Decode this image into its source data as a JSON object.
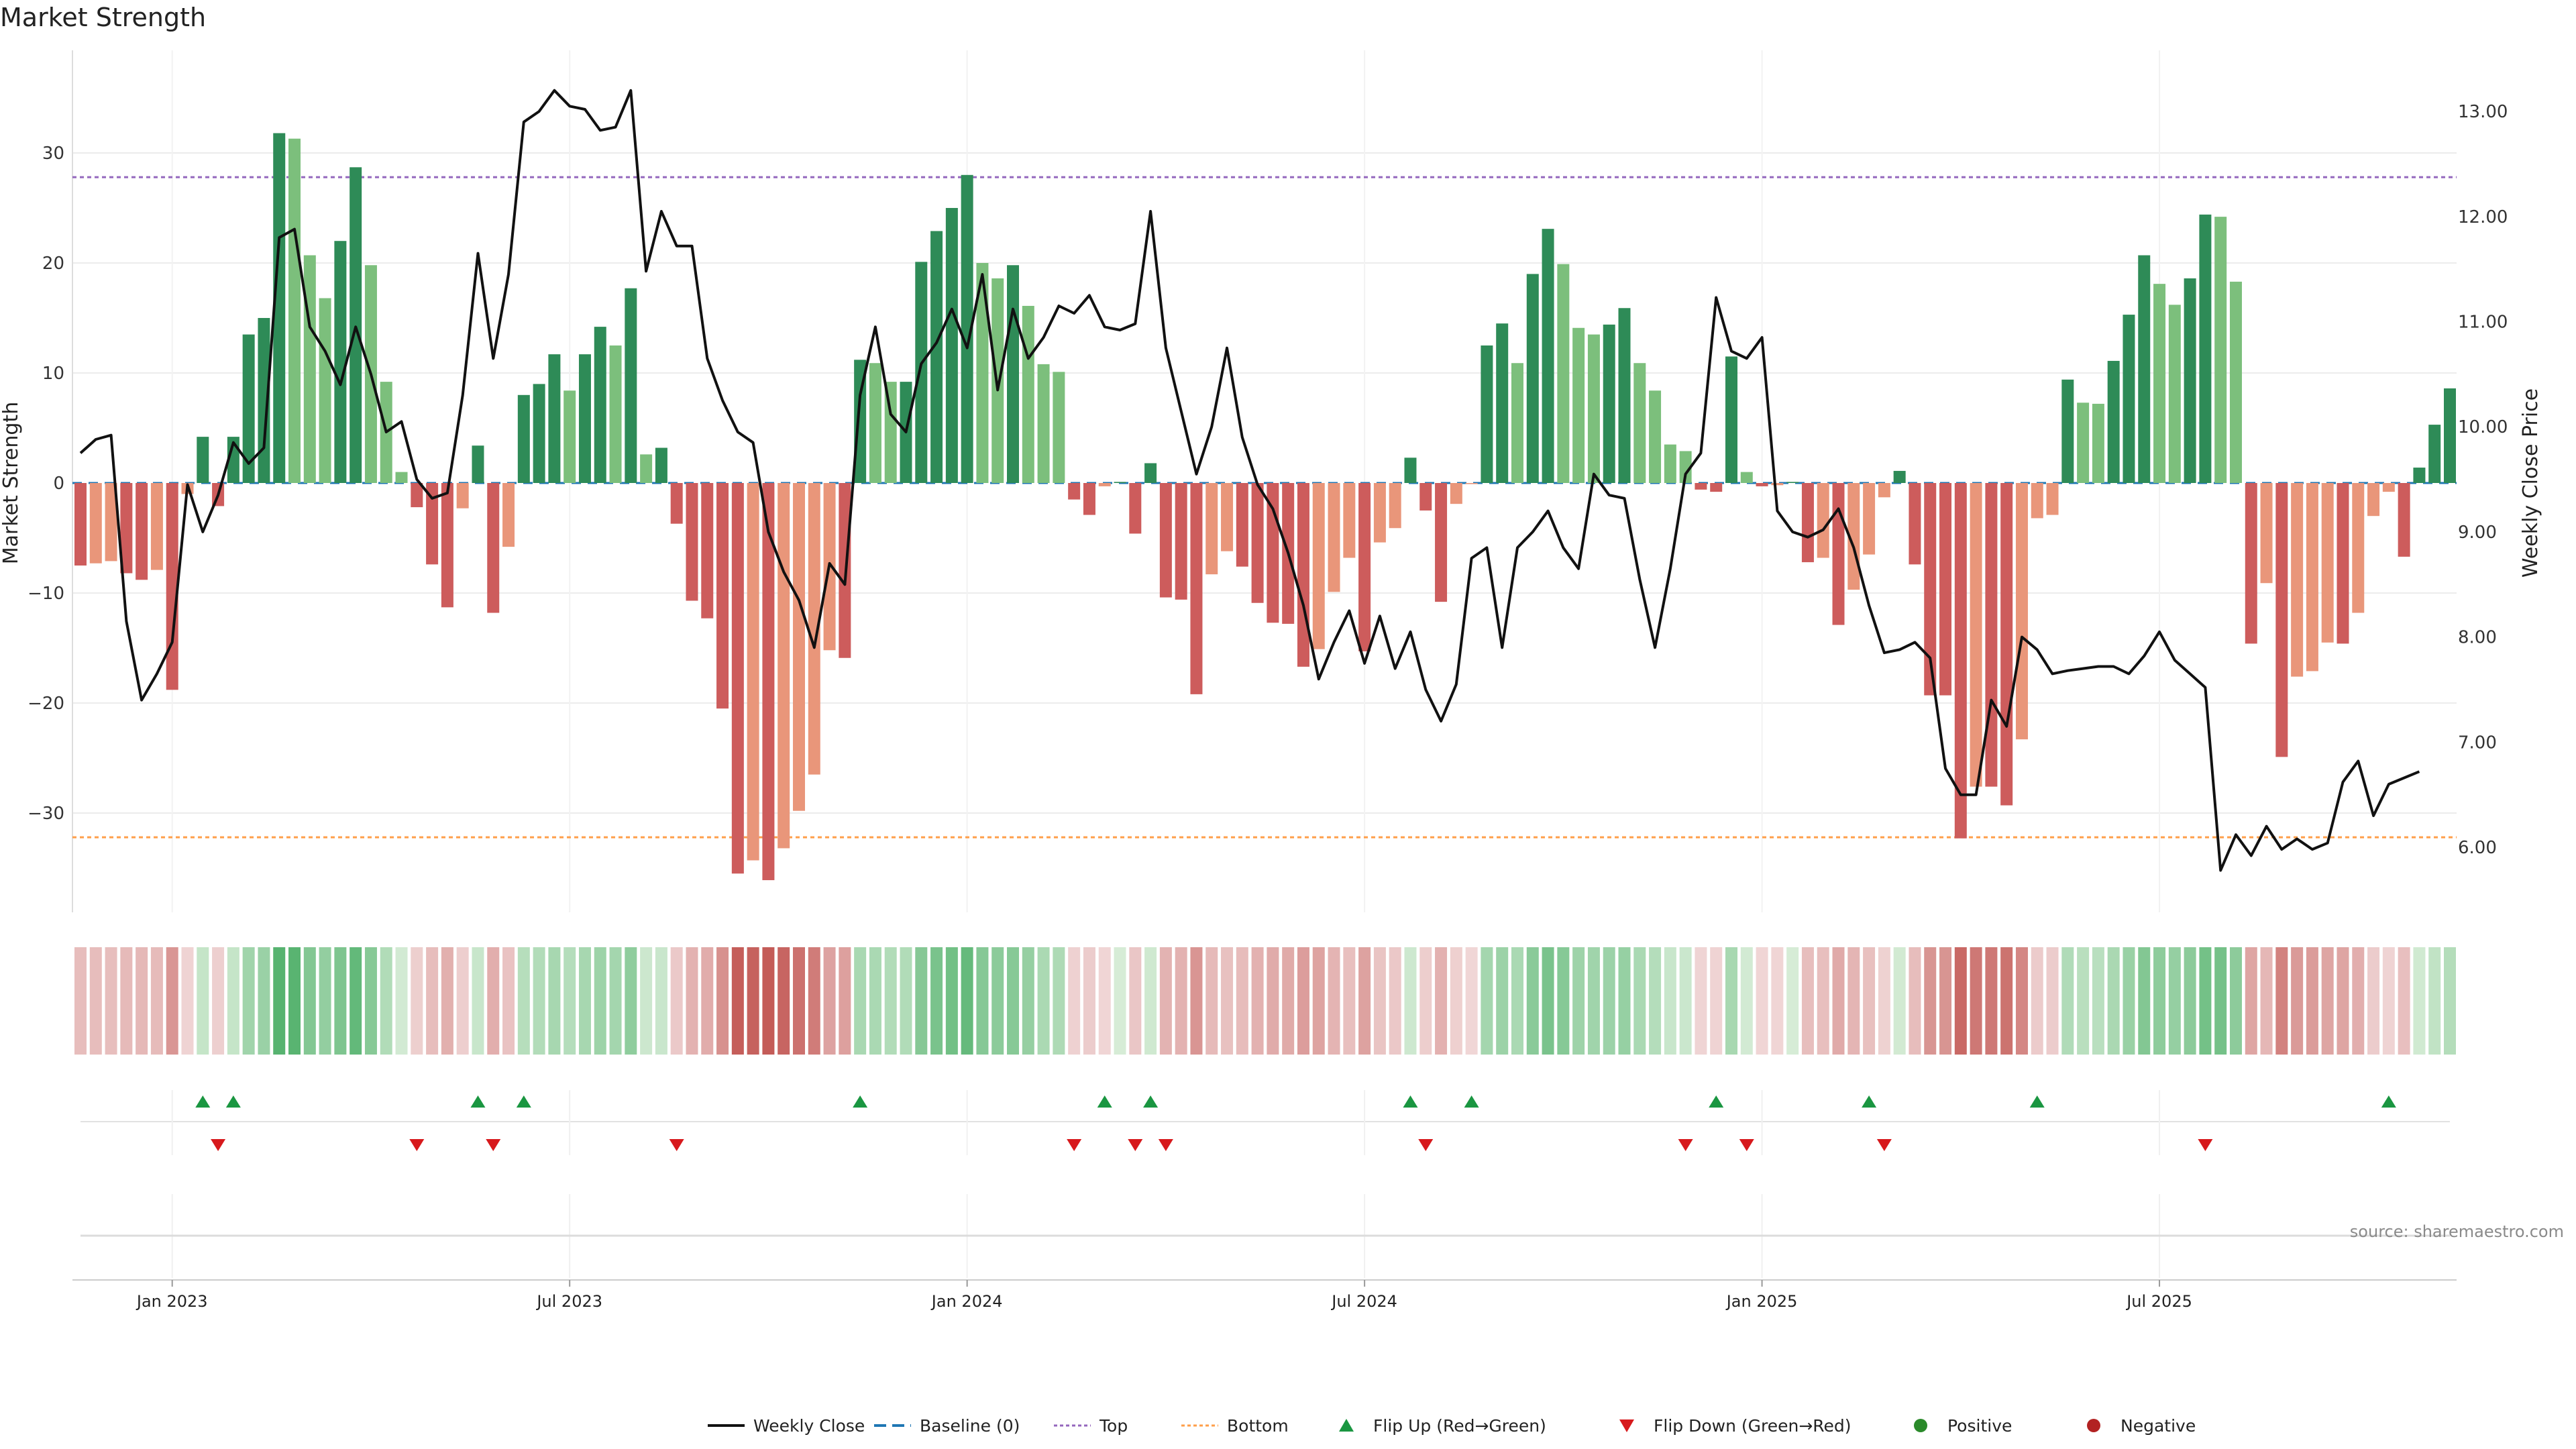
{
  "title": "Market Strength",
  "source": "source: sharemaestro.com",
  "chart_data": {
    "type": "bar",
    "title": "Market Strength",
    "ylabel": "Market Strength",
    "y2label": "Weekly Close Price",
    "ylim": [
      -39,
      39
    ],
    "y2lim": [
      5.2,
      13.4
    ],
    "yticks": [
      -30,
      -20,
      -10,
      0,
      10,
      20,
      30
    ],
    "y2ticks": [
      6.0,
      7.0,
      8.0,
      9.0,
      10.0,
      11.0,
      12.0,
      13.0
    ],
    "xlabels": [
      "Jan 2023",
      "Jul 2023",
      "Jan 2024",
      "Jul 2024",
      "Jan 2025",
      "Jul 2025"
    ],
    "xlabel_weeks": [
      6,
      32,
      58,
      84,
      110,
      136
    ],
    "top_line": 27.8,
    "bottom_line": -32.2,
    "grid": true,
    "legend_position": "bottom",
    "colors": {
      "strong_green": "#2e8b57",
      "light_green": "#7cbf7c",
      "strong_red": "#cd5c5c",
      "light_red": "#e9967a",
      "price_line": "#111111",
      "baseline": "#1f77b4",
      "top": "#9467bd",
      "bottom": "#ff9f4a",
      "flip_up": "#1a9641",
      "flip_down": "#d7191c",
      "positive": "#2a8a2a",
      "negative": "#b22222"
    },
    "strength": [
      -7.5,
      -7.3,
      -7.1,
      -8.2,
      -8.8,
      -7.9,
      -18.8,
      -1.0,
      4.2,
      -2.1,
      4.2,
      13.5,
      15.0,
      31.8,
      31.3,
      20.7,
      16.8,
      22.0,
      28.7,
      19.8,
      9.2,
      1.0,
      -2.2,
      -7.4,
      -11.3,
      -2.3,
      3.4,
      -11.8,
      -5.8,
      8.0,
      9.0,
      11.7,
      8.4,
      11.7,
      14.2,
      12.5,
      17.7,
      2.6,
      3.2,
      -3.7,
      -10.7,
      -12.3,
      -20.5,
      -35.5,
      -34.3,
      -36.1,
      -33.2,
      -29.8,
      -26.5,
      -15.2,
      -15.9,
      11.2,
      10.9,
      9.2,
      9.2,
      20.1,
      22.9,
      25.0,
      28.0,
      20.0,
      18.6,
      19.8,
      16.1,
      10.8,
      10.1,
      -1.5,
      -2.9,
      -0.3,
      0.1,
      -4.6,
      1.8,
      -10.4,
      -10.6,
      -19.2,
      -8.3,
      -6.2,
      -7.6,
      -10.9,
      -12.7,
      -12.8,
      -16.7,
      -15.1,
      -9.9,
      -6.8,
      -15.3,
      -5.4,
      -4.1,
      2.3,
      -2.5,
      -10.8,
      -1.9,
      -0.1,
      12.5,
      14.5,
      10.9,
      19.0,
      23.1,
      19.9,
      14.1,
      13.5,
      14.4,
      15.9,
      10.9,
      8.4,
      3.5,
      2.9,
      -0.6,
      -0.8,
      11.5,
      1.0,
      -0.3,
      -0.2,
      0.1,
      -7.2,
      -6.8,
      -12.9,
      -9.7,
      -6.5,
      -1.3,
      1.1,
      -7.4,
      -19.3,
      -19.3,
      -32.3,
      -27.6,
      -27.6,
      -29.3,
      -23.3,
      -3.2,
      -2.9,
      9.4,
      7.3,
      7.2,
      11.1,
      15.3,
      20.7,
      18.1,
      16.2,
      18.6,
      24.4,
      24.2,
      18.3,
      -14.6,
      -9.1,
      -24.9,
      -17.6,
      -17.1,
      -14.5,
      -14.6,
      -11.8,
      -3.0,
      -0.8,
      -6.7,
      1.4,
      5.3,
      8.6
    ],
    "weekly_close": [
      9.75,
      9.88,
      9.92,
      8.15,
      7.4,
      7.65,
      7.95,
      9.45,
      9.0,
      9.35,
      9.85,
      9.65,
      9.8,
      11.8,
      11.88,
      10.95,
      10.72,
      10.4,
      10.95,
      10.5,
      9.95,
      10.05,
      9.5,
      9.32,
      9.37,
      10.3,
      11.65,
      10.65,
      11.45,
      12.9,
      13.0,
      13.2,
      13.05,
      13.02,
      12.82,
      12.85,
      13.2,
      11.48,
      12.05,
      11.72,
      11.72,
      10.65,
      10.25,
      9.95,
      9.85,
      9.0,
      8.62,
      8.35,
      7.9,
      8.7,
      8.5,
      10.3,
      10.95,
      10.12,
      9.95,
      10.6,
      10.8,
      11.12,
      10.75,
      11.45,
      10.35,
      11.12,
      10.65,
      10.85,
      11.15,
      11.08,
      11.25,
      10.95,
      10.92,
      10.98,
      12.05,
      10.75,
      10.15,
      9.55,
      10.0,
      10.75,
      9.9,
      9.45,
      9.22,
      8.8,
      8.3,
      7.6,
      7.95,
      8.25,
      7.75,
      8.2,
      7.7,
      8.05,
      7.5,
      7.2,
      7.55,
      8.75,
      8.85,
      7.9,
      8.85,
      9.0,
      9.2,
      8.85,
      8.65,
      9.55,
      9.35,
      9.32,
      8.55,
      7.9,
      8.65,
      9.55,
      9.75,
      11.23,
      10.72,
      10.65,
      10.85,
      9.2,
      9.0,
      8.95,
      9.02,
      9.22,
      8.85,
      8.3,
      7.85,
      7.88,
      7.95,
      7.8,
      6.75,
      6.5,
      6.5,
      7.4,
      7.15,
      8.0,
      7.88,
      7.65,
      7.68,
      7.7,
      7.72,
      7.72,
      7.65,
      7.82,
      8.05,
      7.78,
      7.65,
      7.52,
      5.78,
      6.12,
      5.92,
      6.2,
      5.98,
      6.08,
      5.98,
      6.04,
      6.62,
      6.82,
      6.3,
      6.6,
      6.66,
      6.72
    ],
    "flip_up_weeks": [
      8,
      10,
      26,
      29,
      51,
      67,
      70,
      87,
      91,
      107,
      117,
      128,
      151
    ],
    "flip_down_weeks": [
      9,
      22,
      27,
      39,
      65,
      69,
      71,
      88,
      105,
      109,
      118,
      139
    ]
  },
  "legend": [
    {
      "key": "line_black",
      "label": "Weekly Close"
    },
    {
      "key": "dash_blue",
      "label": "Baseline (0)"
    },
    {
      "key": "dot_purple",
      "label": "Top"
    },
    {
      "key": "dot_orange",
      "label": "Bottom"
    },
    {
      "key": "tri_up",
      "label": "Flip Up (Red→Green)"
    },
    {
      "key": "tri_down",
      "label": "Flip Down (Green→Red)"
    },
    {
      "key": "dot_green",
      "label": "Positive"
    },
    {
      "key": "dot_red",
      "label": "Negative"
    }
  ]
}
